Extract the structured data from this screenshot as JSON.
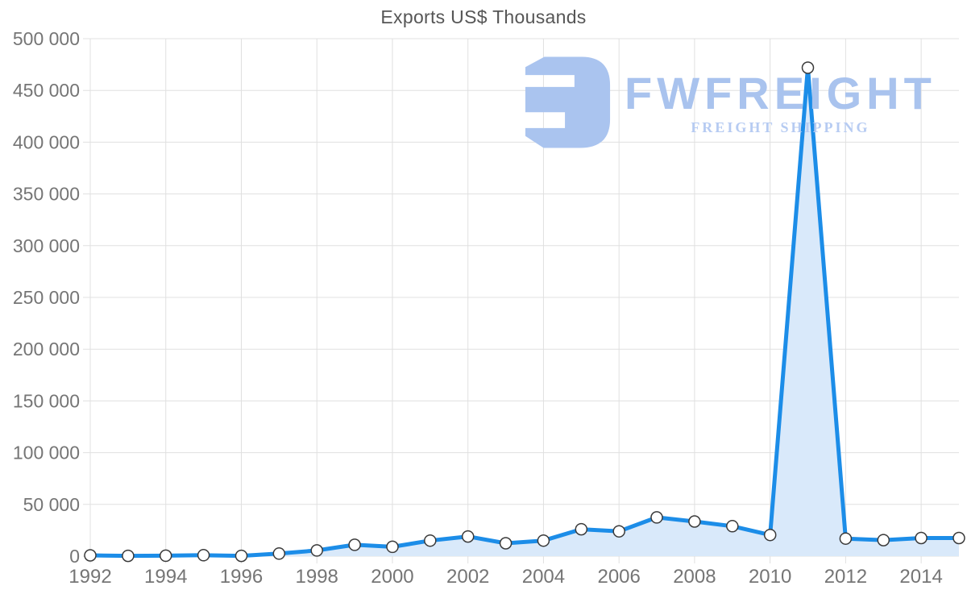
{
  "title": "Exports US$ Thousands",
  "watermark": {
    "brand": "FWFREIGHT",
    "tagline": "FREIGHT SHIPPING",
    "brand_color": "#a9c3ee",
    "tagline_color": "#b6cbf2",
    "icon_color": "#aac4ef",
    "icon": "fwfreight-logo-icon"
  },
  "chart_data": {
    "type": "area",
    "title": "Exports US$ Thousands",
    "xlabel": "",
    "ylabel": "",
    "x": [
      1992,
      1993,
      1994,
      1995,
      1996,
      1997,
      1998,
      1999,
      2000,
      2001,
      2002,
      2003,
      2004,
      2005,
      2006,
      2007,
      2008,
      2009,
      2010,
      2011,
      2012,
      2013,
      2014,
      2015
    ],
    "series": [
      {
        "name": "Exports US$ Thousands",
        "values": [
          800,
          300,
          500,
          900,
          300,
          2500,
          5500,
          11000,
          9000,
          15000,
          19000,
          12500,
          15000,
          26000,
          24000,
          37500,
          33500,
          29000,
          20500,
          472000,
          17000,
          15500,
          17500,
          17500
        ]
      }
    ],
    "ylim": [
      0,
      500000
    ],
    "ytick_step": 50000,
    "xtick_step": 2,
    "grid": true,
    "legend": "none",
    "y_tick_labels": [
      "0",
      "50 000",
      "100 000",
      "150 000",
      "200 000",
      "250 000",
      "300 000",
      "350 000",
      "400 000",
      "450 000",
      "500 000"
    ],
    "x_tick_labels": [
      "1992",
      "1994",
      "1996",
      "1998",
      "2000",
      "2002",
      "2004",
      "2006",
      "2008",
      "2010",
      "2012",
      "2014"
    ],
    "colors": {
      "line": "#1c8de8",
      "area_fill": "#d9e9fa",
      "grid": "#e0e0e0",
      "axis_text": "#757575",
      "marker_fill": "#ffffff",
      "marker_stroke": "#3a3a3a",
      "title_text": "#565656"
    }
  }
}
